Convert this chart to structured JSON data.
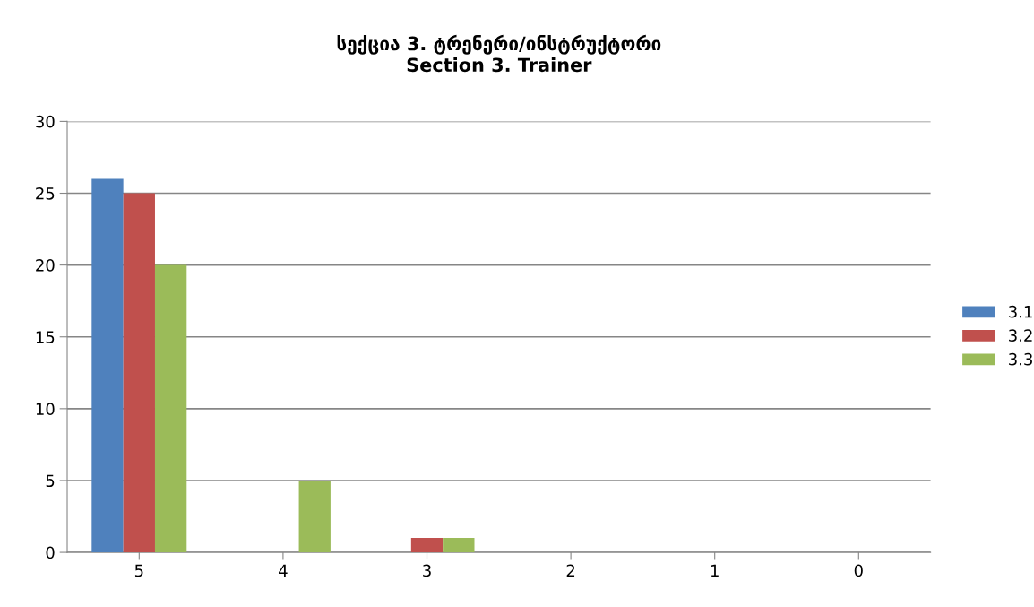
{
  "chart_data": {
    "type": "bar",
    "title": "სექცია 3. ტრენერი/ინსტრუქტორი\nSection 3. Trainer",
    "categories": [
      "5",
      "4",
      "3",
      "2",
      "1",
      "0"
    ],
    "series": [
      {
        "name": "3.1",
        "color": "#4f81bd",
        "values": [
          26,
          0,
          0,
          0,
          0,
          0
        ]
      },
      {
        "name": "3.2",
        "color": "#c0504d",
        "values": [
          25,
          0,
          1,
          0,
          0,
          0
        ]
      },
      {
        "name": "3.3",
        "color": "#9bbb59",
        "values": [
          20,
          5,
          1,
          0,
          0,
          0
        ]
      }
    ],
    "ylim": [
      0,
      30
    ],
    "yticks": [
      0,
      5,
      10,
      15,
      20,
      25,
      30
    ],
    "grid": "y",
    "legend": "right"
  }
}
